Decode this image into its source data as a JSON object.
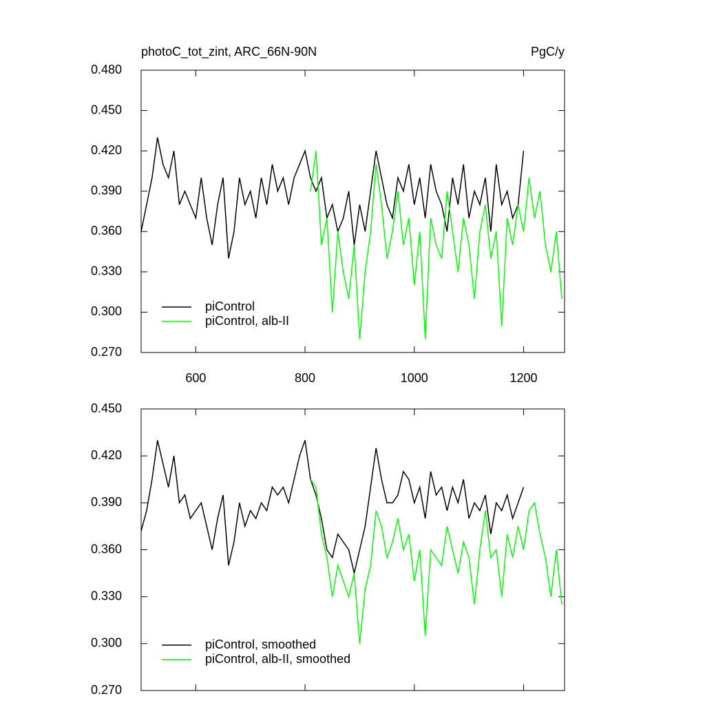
{
  "chart_data": [
    {
      "type": "line",
      "title": "photoC_tot_zint, ARC_66N-90N",
      "right_title": "PgC/y",
      "xlim": [
        500,
        1275
      ],
      "xticks": [
        600,
        800,
        1000,
        1200
      ],
      "xtick_labels": true,
      "ylim": [
        0.27,
        0.48
      ],
      "yticks": [
        {
          "value": 0.27,
          "label": "0.270"
        },
        {
          "value": 0.3,
          "label": "0.300"
        },
        {
          "value": 0.33,
          "label": "0.330"
        },
        {
          "value": 0.36,
          "label": "0.360"
        },
        {
          "value": 0.39,
          "label": "0.390"
        },
        {
          "value": 0.42,
          "label": "0.420"
        },
        {
          "value": 0.45,
          "label": "0.450"
        },
        {
          "value": 0.48,
          "label": "0.480"
        }
      ],
      "legend": "lower left",
      "series": [
        {
          "name": "piControl",
          "color": "#000000",
          "x": [
            500,
            510,
            520,
            530,
            540,
            550,
            560,
            570,
            580,
            590,
            600,
            610,
            620,
            630,
            640,
            650,
            660,
            670,
            680,
            690,
            700,
            710,
            720,
            730,
            740,
            750,
            760,
            770,
            780,
            790,
            800,
            810,
            820,
            830,
            840,
            850,
            860,
            870,
            880,
            890,
            900,
            910,
            920,
            930,
            940,
            950,
            960,
            970,
            980,
            990,
            1000,
            1010,
            1020,
            1030,
            1040,
            1050,
            1060,
            1070,
            1080,
            1090,
            1100,
            1110,
            1120,
            1130,
            1140,
            1150,
            1160,
            1170,
            1180,
            1190,
            1200
          ],
          "values": [
            0.36,
            0.38,
            0.4,
            0.43,
            0.41,
            0.4,
            0.42,
            0.38,
            0.39,
            0.38,
            0.37,
            0.4,
            0.37,
            0.35,
            0.38,
            0.4,
            0.34,
            0.36,
            0.4,
            0.38,
            0.39,
            0.37,
            0.4,
            0.38,
            0.41,
            0.39,
            0.4,
            0.38,
            0.4,
            0.41,
            0.42,
            0.4,
            0.39,
            0.4,
            0.37,
            0.38,
            0.36,
            0.37,
            0.39,
            0.35,
            0.38,
            0.36,
            0.39,
            0.42,
            0.4,
            0.38,
            0.37,
            0.4,
            0.39,
            0.41,
            0.38,
            0.4,
            0.37,
            0.41,
            0.39,
            0.38,
            0.36,
            0.4,
            0.38,
            0.41,
            0.37,
            0.39,
            0.38,
            0.4,
            0.36,
            0.41,
            0.38,
            0.39,
            0.37,
            0.38,
            0.42
          ]
        },
        {
          "name": "piControl, alb-II",
          "color": "#00ff00",
          "x": [
            810,
            820,
            830,
            840,
            850,
            860,
            870,
            880,
            890,
            900,
            910,
            920,
            930,
            940,
            950,
            960,
            970,
            980,
            990,
            1000,
            1010,
            1020,
            1030,
            1040,
            1050,
            1060,
            1070,
            1080,
            1090,
            1100,
            1110,
            1120,
            1130,
            1140,
            1150,
            1160,
            1170,
            1180,
            1190,
            1200,
            1210,
            1220,
            1230,
            1240,
            1250,
            1260,
            1270
          ],
          "values": [
            0.39,
            0.42,
            0.35,
            0.37,
            0.3,
            0.36,
            0.33,
            0.31,
            0.35,
            0.28,
            0.33,
            0.36,
            0.41,
            0.38,
            0.34,
            0.36,
            0.39,
            0.35,
            0.37,
            0.32,
            0.36,
            0.28,
            0.37,
            0.35,
            0.34,
            0.39,
            0.36,
            0.33,
            0.37,
            0.35,
            0.31,
            0.36,
            0.38,
            0.34,
            0.36,
            0.29,
            0.37,
            0.35,
            0.38,
            0.36,
            0.4,
            0.37,
            0.39,
            0.35,
            0.33,
            0.36,
            0.31
          ]
        }
      ]
    },
    {
      "type": "line",
      "xlim": [
        500,
        1275
      ],
      "xticks": [
        600,
        800,
        1000,
        1200
      ],
      "xtick_labels": false,
      "ylim": [
        0.27,
        0.45
      ],
      "yticks": [
        {
          "value": 0.27,
          "label": "0.270"
        },
        {
          "value": 0.3,
          "label": "0.300"
        },
        {
          "value": 0.33,
          "label": "0.330"
        },
        {
          "value": 0.36,
          "label": "0.360"
        },
        {
          "value": 0.39,
          "label": "0.390"
        },
        {
          "value": 0.42,
          "label": "0.420"
        },
        {
          "value": 0.45,
          "label": "0.450"
        }
      ],
      "legend": "lower left",
      "series": [
        {
          "name": "piControl, smoothed",
          "color": "#000000",
          "x": [
            500,
            510,
            520,
            530,
            540,
            550,
            560,
            570,
            580,
            590,
            600,
            610,
            620,
            630,
            640,
            650,
            660,
            670,
            680,
            690,
            700,
            710,
            720,
            730,
            740,
            750,
            760,
            770,
            780,
            790,
            800,
            810,
            820,
            830,
            840,
            850,
            860,
            870,
            880,
            890,
            900,
            910,
            920,
            930,
            940,
            950,
            960,
            970,
            980,
            990,
            1000,
            1010,
            1020,
            1030,
            1040,
            1050,
            1060,
            1070,
            1080,
            1090,
            1100,
            1110,
            1120,
            1130,
            1140,
            1150,
            1160,
            1170,
            1180,
            1190,
            1200
          ],
          "values": [
            0.372,
            0.385,
            0.405,
            0.43,
            0.415,
            0.4,
            0.42,
            0.39,
            0.395,
            0.38,
            0.385,
            0.39,
            0.375,
            0.36,
            0.38,
            0.395,
            0.35,
            0.365,
            0.39,
            0.375,
            0.385,
            0.38,
            0.39,
            0.385,
            0.4,
            0.395,
            0.4,
            0.39,
            0.405,
            0.42,
            0.43,
            0.405,
            0.395,
            0.38,
            0.36,
            0.355,
            0.37,
            0.365,
            0.36,
            0.345,
            0.36,
            0.375,
            0.4,
            0.425,
            0.405,
            0.39,
            0.39,
            0.395,
            0.41,
            0.405,
            0.39,
            0.4,
            0.38,
            0.41,
            0.395,
            0.4,
            0.385,
            0.4,
            0.39,
            0.405,
            0.38,
            0.39,
            0.385,
            0.395,
            0.37,
            0.39,
            0.385,
            0.395,
            0.38,
            0.39,
            0.4
          ]
        },
        {
          "name": "piControl, alb-II, smoothed",
          "color": "#00ff00",
          "x": [
            810,
            820,
            830,
            840,
            850,
            860,
            870,
            880,
            890,
            900,
            910,
            920,
            930,
            940,
            950,
            960,
            970,
            980,
            990,
            1000,
            1010,
            1020,
            1030,
            1040,
            1050,
            1060,
            1070,
            1080,
            1090,
            1100,
            1110,
            1120,
            1130,
            1140,
            1150,
            1160,
            1170,
            1180,
            1190,
            1200,
            1210,
            1220,
            1230,
            1240,
            1250,
            1260,
            1270
          ],
          "values": [
            0.405,
            0.4,
            0.37,
            0.355,
            0.33,
            0.35,
            0.34,
            0.33,
            0.345,
            0.3,
            0.335,
            0.35,
            0.385,
            0.375,
            0.355,
            0.365,
            0.38,
            0.36,
            0.37,
            0.34,
            0.36,
            0.305,
            0.36,
            0.355,
            0.35,
            0.375,
            0.36,
            0.345,
            0.365,
            0.355,
            0.325,
            0.36,
            0.385,
            0.355,
            0.36,
            0.33,
            0.37,
            0.355,
            0.375,
            0.36,
            0.385,
            0.39,
            0.37,
            0.355,
            0.33,
            0.36,
            0.325
          ]
        }
      ]
    }
  ]
}
